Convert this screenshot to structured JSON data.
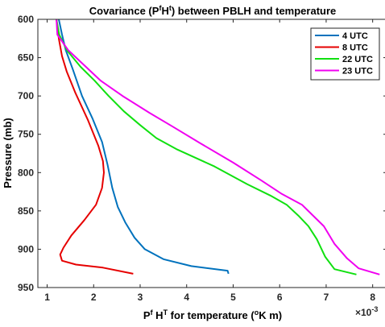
{
  "chart_data": {
    "type": "line",
    "title_parts": [
      "Covariance (P",
      "f",
      "H",
      "t",
      ") between PBLH and temperature"
    ],
    "xlabel_parts": [
      "P",
      "f",
      " H",
      "T",
      " for temperature (",
      "o",
      "K m)"
    ],
    "ylabel": "Pressure (mb)",
    "x_multiplier_parts": [
      "×10",
      "-3"
    ],
    "xlim": [
      0.8,
      8.3
    ],
    "ylim": [
      600,
      950
    ],
    "y_reversed": true,
    "xticks": [
      1,
      2,
      3,
      4,
      5,
      6,
      7,
      8
    ],
    "yticks": [
      600,
      650,
      700,
      750,
      800,
      850,
      900,
      950
    ],
    "legend_position": "top-right",
    "series": [
      {
        "name": "4 UTC",
        "color": "#0072BD",
        "points": [
          [
            1.25,
            600
          ],
          [
            1.32,
            620
          ],
          [
            1.4,
            640
          ],
          [
            1.55,
            665
          ],
          [
            1.75,
            700
          ],
          [
            1.98,
            730
          ],
          [
            2.18,
            760
          ],
          [
            2.3,
            790
          ],
          [
            2.4,
            820
          ],
          [
            2.52,
            845
          ],
          [
            2.68,
            865
          ],
          [
            2.88,
            885
          ],
          [
            3.1,
            900
          ],
          [
            3.5,
            913
          ],
          [
            4.1,
            922
          ],
          [
            4.88,
            928
          ],
          [
            4.9,
            932
          ]
        ]
      },
      {
        "name": "8 UTC",
        "color": "#E60000",
        "points": [
          [
            1.2,
            600
          ],
          [
            1.25,
            625
          ],
          [
            1.32,
            648
          ],
          [
            1.42,
            668
          ],
          [
            1.6,
            695
          ],
          [
            1.88,
            732
          ],
          [
            2.1,
            765
          ],
          [
            2.2,
            785
          ],
          [
            2.22,
            800
          ],
          [
            2.18,
            820
          ],
          [
            2.05,
            842
          ],
          [
            1.8,
            862
          ],
          [
            1.52,
            882
          ],
          [
            1.35,
            898
          ],
          [
            1.28,
            907
          ],
          [
            1.32,
            915
          ],
          [
            1.62,
            920
          ],
          [
            2.2,
            924
          ],
          [
            2.85,
            932
          ]
        ]
      },
      {
        "name": "22 UTC",
        "color": "#10E010",
        "points": [
          [
            1.2,
            600
          ],
          [
            1.26,
            620
          ],
          [
            1.42,
            640
          ],
          [
            1.72,
            662
          ],
          [
            2.02,
            680
          ],
          [
            2.32,
            700
          ],
          [
            2.65,
            720
          ],
          [
            3.0,
            738
          ],
          [
            3.35,
            755
          ],
          [
            3.8,
            770
          ],
          [
            4.6,
            792
          ],
          [
            5.3,
            815
          ],
          [
            5.8,
            830
          ],
          [
            6.15,
            842
          ],
          [
            6.4,
            856
          ],
          [
            6.62,
            870
          ],
          [
            6.8,
            887
          ],
          [
            6.98,
            910
          ],
          [
            7.18,
            926
          ],
          [
            7.65,
            933
          ]
        ]
      },
      {
        "name": "23 UTC",
        "color": "#F000F0",
        "points": [
          [
            1.2,
            600
          ],
          [
            1.22,
            620
          ],
          [
            1.45,
            640
          ],
          [
            1.8,
            660
          ],
          [
            2.15,
            680
          ],
          [
            2.62,
            700
          ],
          [
            3.2,
            722
          ],
          [
            3.7,
            740
          ],
          [
            4.3,
            762
          ],
          [
            5.0,
            787
          ],
          [
            5.6,
            810
          ],
          [
            6.05,
            828
          ],
          [
            6.48,
            842
          ],
          [
            6.75,
            858
          ],
          [
            6.95,
            870
          ],
          [
            7.18,
            893
          ],
          [
            7.45,
            912
          ],
          [
            7.7,
            925
          ],
          [
            8.15,
            933
          ]
        ]
      }
    ]
  }
}
